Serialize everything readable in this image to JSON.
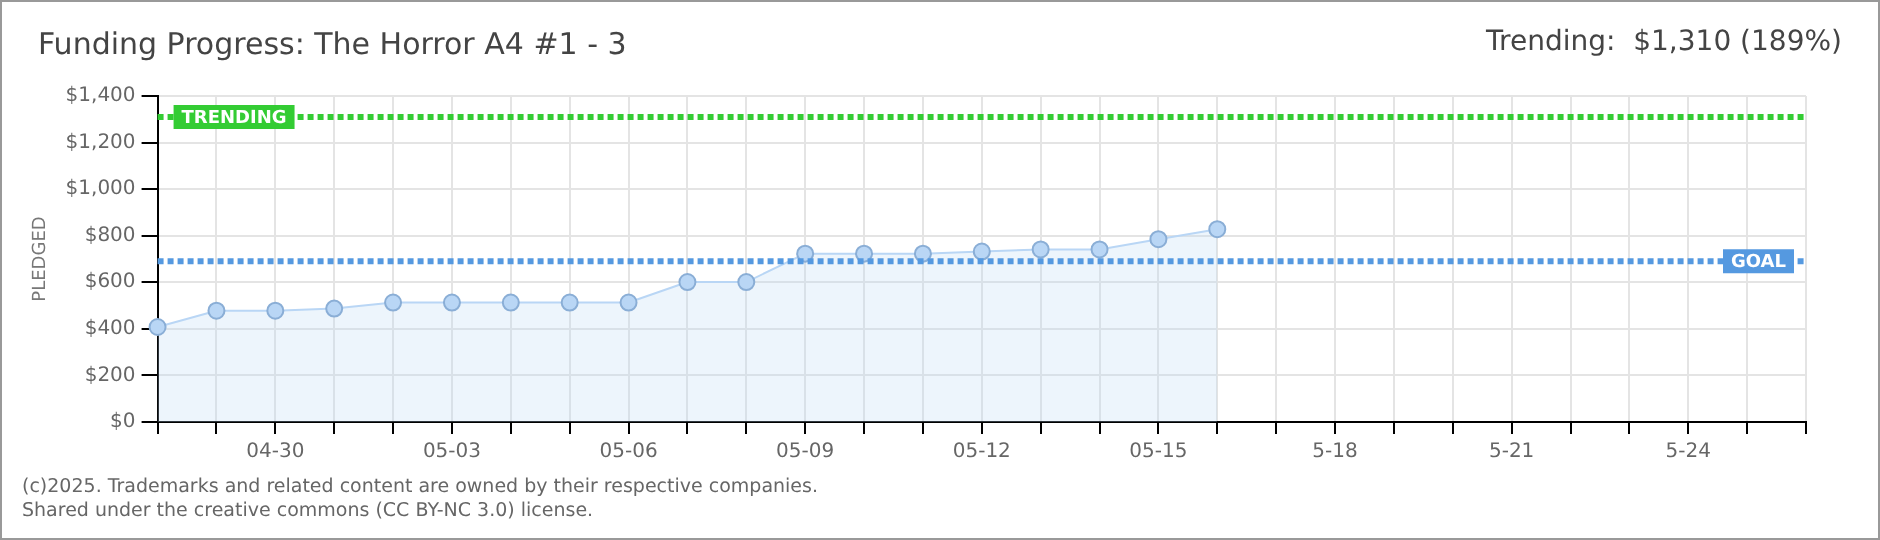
{
  "chart_data": {
    "type": "area",
    "title": "Funding Progress: The Horror A4 #1 - 3",
    "subtitle": "Trending:  $1,310 (189%)",
    "ylabel": "PLEDGED",
    "categories": [
      null,
      null,
      "04-30",
      null,
      null,
      "05-03",
      null,
      null,
      "05-06",
      null,
      null,
      "05-09",
      null,
      null,
      "05-12",
      null,
      null,
      "05-15",
      null,
      null,
      "5-18",
      null,
      null,
      "5-21",
      null,
      null,
      "5-24",
      null,
      null
    ],
    "series": [
      {
        "color": "#b9d6f5",
        "values": [
          408,
          478,
          478,
          487,
          513,
          513,
          513,
          513,
          513,
          601,
          601,
          723,
          723,
          723,
          732,
          741,
          741,
          785,
          828,
          null,
          null,
          null,
          null,
          null,
          null,
          null,
          null,
          null,
          null
        ]
      }
    ],
    "ylim": [
      0,
      1400
    ],
    "yticks": [
      {
        "value": 0,
        "label": "$0"
      },
      {
        "value": 200,
        "label": "$200"
      },
      {
        "value": 400,
        "label": "$400"
      },
      {
        "value": 600,
        "label": "$600"
      },
      {
        "value": 800,
        "label": "$800"
      },
      {
        "value": 1000,
        "label": "$1,000"
      },
      {
        "value": 1200,
        "label": "$1,200"
      },
      {
        "value": 1400,
        "label": "$1,400"
      }
    ],
    "ref_lines": [
      {
        "axis": "y",
        "value": 1310,
        "label": "TRENDING",
        "color": "#33cc33",
        "line_style": "dotted"
      },
      {
        "axis": "y",
        "value": 690,
        "label": "GOAL",
        "color": "#5599e0",
        "line_style": "dotted"
      }
    ],
    "annotations": [
      "(c)2025. Trademarks and related content are owned by their respective companies.",
      "Shared under the creative commons (CC BY-NC 3.0) license."
    ],
    "grid": true,
    "legend": false,
    "marker": "circle",
    "line_style": "solid"
  }
}
